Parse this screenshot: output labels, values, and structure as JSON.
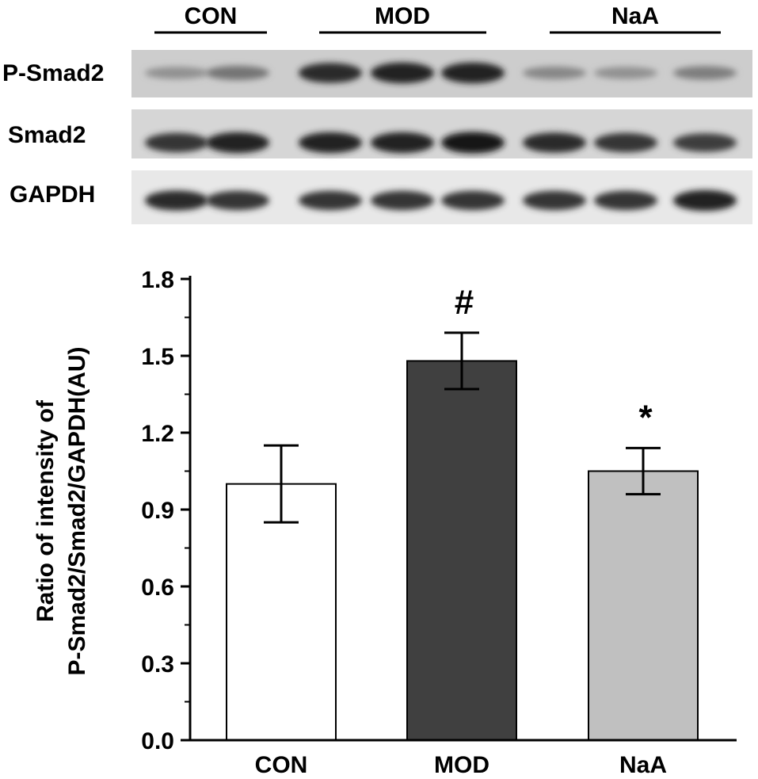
{
  "blot": {
    "groups": [
      {
        "label": "CON",
        "lanes": 2
      },
      {
        "label": "MOD",
        "lanes": 3
      },
      {
        "label": "NaA",
        "lanes": 3
      }
    ],
    "rows": [
      {
        "label": "P-Smad2",
        "intensities": [
          0.3,
          0.45,
          0.85,
          0.9,
          0.9,
          0.35,
          0.3,
          0.4
        ]
      },
      {
        "label": "Smad2",
        "intensities": [
          0.8,
          0.9,
          0.9,
          0.9,
          0.95,
          0.85,
          0.8,
          0.75
        ]
      },
      {
        "label": "GAPDH",
        "intensities": [
          0.85,
          0.8,
          0.8,
          0.8,
          0.8,
          0.8,
          0.8,
          0.9
        ]
      }
    ]
  },
  "chart_data": {
    "type": "bar",
    "categories": [
      "CON",
      "MOD",
      "NaA"
    ],
    "values": [
      1.0,
      1.48,
      1.05
    ],
    "errors": [
      0.15,
      0.11,
      0.09
    ],
    "annotations": [
      "",
      "#",
      "*"
    ],
    "bar_colors": [
      "#ffffff",
      "#404040",
      "#c0c0c0"
    ],
    "ylabel_lines": [
      "Ratio of intensity of",
      "P-Smad2/Smad2/GAPDH(AU)"
    ],
    "yticks": [
      "0.0",
      "0.3",
      "0.6",
      "0.9",
      "1.2",
      "1.5",
      "1.8"
    ],
    "ylim": [
      0,
      1.8
    ],
    "grid": false
  }
}
